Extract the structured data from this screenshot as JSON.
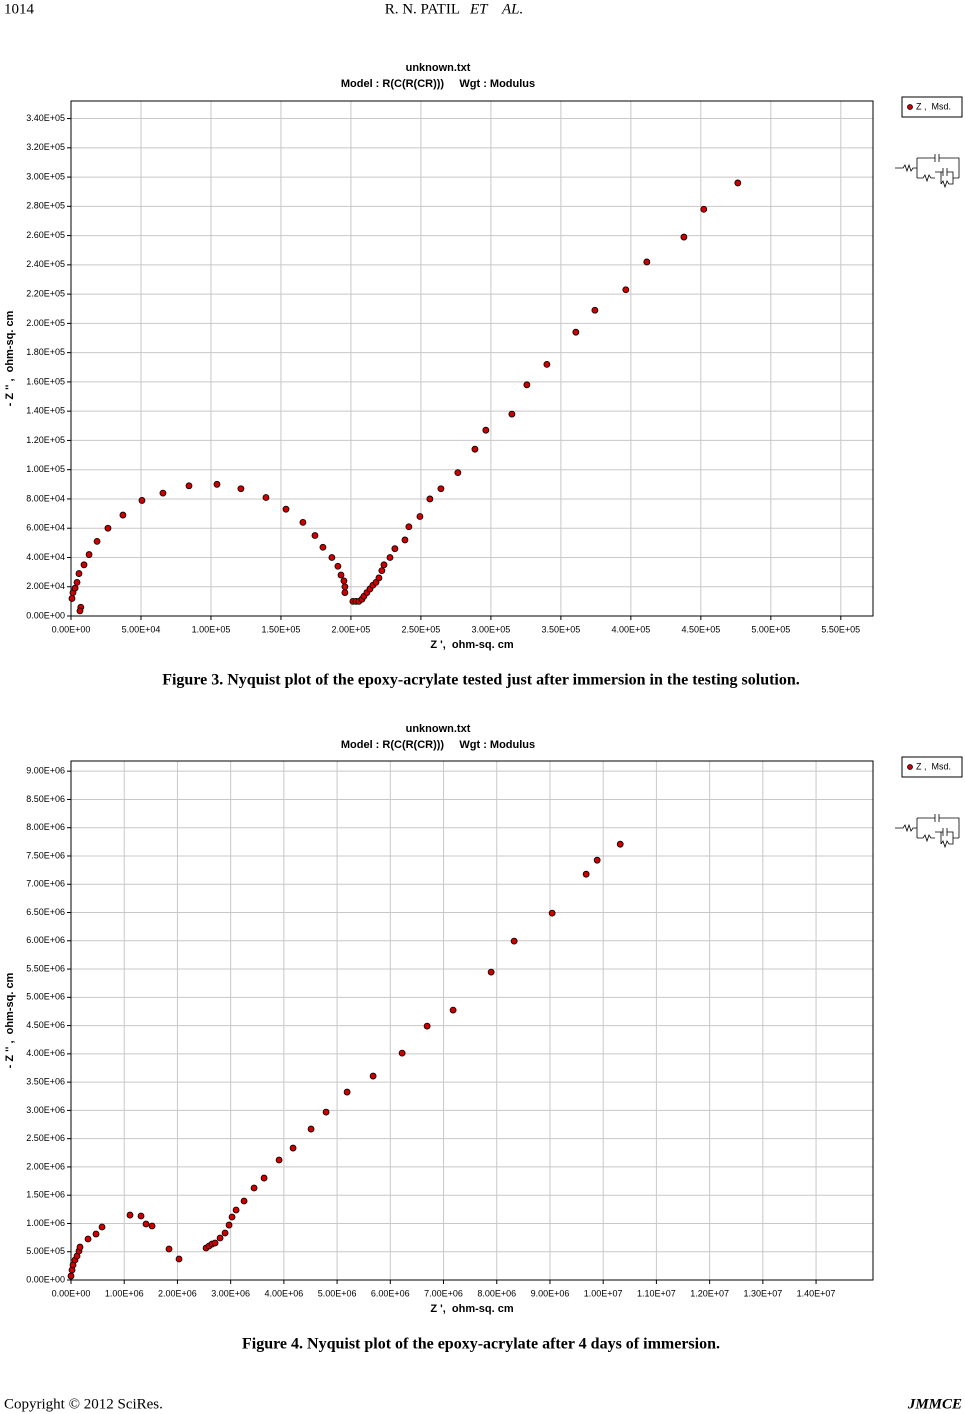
{
  "header": {
    "page": "1014",
    "running_head": "R. N. PATIL",
    "running_head_italic": "ET    AL."
  },
  "chart_data": [
    {
      "type": "scatter",
      "title": "unknown.txt",
      "subtitle": "Model : R(C(R(CR)))     Wgt : Modulus",
      "xlabel": "Z ',  ohm-sq. cm",
      "ylabel": "- Z '' ,  ohm-sq. cm",
      "grid": true,
      "legend": "top-right",
      "xlim": [
        0,
        573000
      ],
      "ylim": [
        0,
        352000
      ],
      "xticks": [
        {
          "value": 0,
          "label": "0.00E+00"
        },
        {
          "value": 50000,
          "label": "5.00E+04"
        },
        {
          "value": 100000,
          "label": "1.00E+05"
        },
        {
          "value": 150000,
          "label": "1.50E+05"
        },
        {
          "value": 200000,
          "label": "2.00E+05"
        },
        {
          "value": 250000,
          "label": "2.50E+05"
        },
        {
          "value": 300000,
          "label": "3.00E+05"
        },
        {
          "value": 350000,
          "label": "3.50E+05"
        },
        {
          "value": 400000,
          "label": "4.00E+05"
        },
        {
          "value": 450000,
          "label": "4.50E+05"
        },
        {
          "value": 500000,
          "label": "5.00E+05"
        },
        {
          "value": 550000,
          "label": "5.50E+05"
        }
      ],
      "yticks": [
        {
          "value": 0,
          "label": "0.00E+00"
        },
        {
          "value": 20000,
          "label": "2.00E+04"
        },
        {
          "value": 40000,
          "label": "4.00E+04"
        },
        {
          "value": 60000,
          "label": "6.00E+04"
        },
        {
          "value": 80000,
          "label": "8.00E+04"
        },
        {
          "value": 100000,
          "label": "1.00E+05"
        },
        {
          "value": 120000,
          "label": "1.20E+05"
        },
        {
          "value": 140000,
          "label": "1.40E+05"
        },
        {
          "value": 160000,
          "label": "1.60E+05"
        },
        {
          "value": 180000,
          "label": "1.80E+05"
        },
        {
          "value": 200000,
          "label": "2.00E+05"
        },
        {
          "value": 220000,
          "label": "2.20E+05"
        },
        {
          "value": 240000,
          "label": "2.40E+05"
        },
        {
          "value": 260000,
          "label": "2.60E+05"
        },
        {
          "value": 280000,
          "label": "2.80E+05"
        },
        {
          "value": 300000,
          "label": "3.00E+05"
        },
        {
          "value": 320000,
          "label": "3.20E+05"
        },
        {
          "value": 340000,
          "label": "3.40E+05"
        }
      ],
      "series": [
        {
          "name": "Z ,  Msd.",
          "color": "#cc0000",
          "x": [
            7000,
            6400,
            700,
            1400,
            2900,
            4300,
            5700,
            9300,
            12900,
            18600,
            26400,
            37100,
            50700,
            65700,
            84300,
            104300,
            121400,
            139300,
            153600,
            165700,
            174300,
            180000,
            186400,
            190700,
            192900,
            195000,
            195700,
            195700,
            201400,
            203600,
            205700,
            207900,
            209300,
            211400,
            213600,
            215700,
            217900,
            220000,
            222100,
            223600,
            227900,
            231400,
            238600,
            241400,
            249300,
            256400,
            264300,
            276400,
            288600,
            296400,
            315000,
            325700,
            340000,
            360700,
            374300,
            396400,
            411400,
            437900,
            452100,
            476400
          ],
          "y": [
            6000,
            3500,
            12000,
            16000,
            19000,
            23000,
            29000,
            35000,
            42000,
            51000,
            60000,
            69000,
            79000,
            84000,
            89000,
            90000,
            87000,
            81000,
            73000,
            64000,
            55000,
            47000,
            40000,
            34000,
            28000,
            24000,
            20000,
            16000,
            10000,
            10000,
            10000,
            11500,
            13500,
            16000,
            18500,
            21000,
            23000,
            26000,
            31000,
            35000,
            40000,
            46000,
            52000,
            61000,
            68000,
            80000,
            87000,
            98000,
            114000,
            127000,
            138000,
            158000,
            172000,
            194000,
            209000,
            223000,
            242000,
            259000,
            278000,
            296000
          ]
        }
      ]
    },
    {
      "type": "scatter",
      "title": "unknown.txt",
      "subtitle": "Model : R(C(R(CR)))     Wgt : Modulus",
      "xlabel": "Z ',  ohm-sq. cm",
      "ylabel": "- Z '' ,  ohm-sq. cm",
      "grid": true,
      "legend": "top-right",
      "xlim": [
        0,
        15070000
      ],
      "ylim": [
        0,
        9180000
      ],
      "xticks": [
        {
          "value": 0,
          "label": "0.00E+00"
        },
        {
          "value": 1000000,
          "label": "1.00E+06"
        },
        {
          "value": 2000000,
          "label": "2.00E+06"
        },
        {
          "value": 3000000,
          "label": "3.00E+06"
        },
        {
          "value": 4000000,
          "label": "4.00E+06"
        },
        {
          "value": 5000000,
          "label": "5.00E+06"
        },
        {
          "value": 6000000,
          "label": "6.00E+06"
        },
        {
          "value": 7000000,
          "label": "7.00E+06"
        },
        {
          "value": 8000000,
          "label": "8.00E+06"
        },
        {
          "value": 9000000,
          "label": "9.00E+06"
        },
        {
          "value": 10000000,
          "label": "1.00E+07"
        },
        {
          "value": 11000000,
          "label": "1.10E+07"
        },
        {
          "value": 12000000,
          "label": "1.20E+07"
        },
        {
          "value": 13000000,
          "label": "1.30E+07"
        },
        {
          "value": 14000000,
          "label": "1.40E+07"
        }
      ],
      "yticks": [
        {
          "value": 0,
          "label": "0.00E+00"
        },
        {
          "value": 500000,
          "label": "5.00E+05"
        },
        {
          "value": 1000000,
          "label": "1.00E+06"
        },
        {
          "value": 1500000,
          "label": "1.50E+06"
        },
        {
          "value": 2000000,
          "label": "2.00E+06"
        },
        {
          "value": 2500000,
          "label": "2.50E+06"
        },
        {
          "value": 3000000,
          "label": "3.00E+06"
        },
        {
          "value": 3500000,
          "label": "3.50E+06"
        },
        {
          "value": 4000000,
          "label": "4.00E+06"
        },
        {
          "value": 4500000,
          "label": "4.50E+06"
        },
        {
          "value": 5000000,
          "label": "5.00E+06"
        },
        {
          "value": 5500000,
          "label": "5.50E+06"
        },
        {
          "value": 6000000,
          "label": "6.00E+06"
        },
        {
          "value": 6500000,
          "label": "6.50E+06"
        },
        {
          "value": 7000000,
          "label": "7.00E+06"
        },
        {
          "value": 7500000,
          "label": "7.50E+06"
        },
        {
          "value": 8000000,
          "label": "8.00E+06"
        },
        {
          "value": 8500000,
          "label": "8.50E+06"
        },
        {
          "value": 9000000,
          "label": "9.00E+06"
        }
      ],
      "series": [
        {
          "name": "Z ,  Msd.",
          "color": "#cc0000",
          "x": [
            0,
            19000,
            38000,
            75000,
            113000,
            150000,
            169000,
            320000,
            470000,
            583000,
            1109000,
            1316000,
            1410000,
            1523000,
            1842000,
            2030000,
            2538000,
            2594000,
            2650000,
            2707000,
            2801000,
            2895000,
            2970000,
            3026000,
            3102000,
            3252000,
            3440000,
            3628000,
            3910000,
            4173000,
            4511000,
            4793000,
            5188000,
            5677000,
            6222000,
            6692000,
            7180000,
            7895000,
            8327000,
            9041000,
            9680000,
            9887000,
            10320000
          ],
          "y": [
            70000,
            177000,
            265000,
            354000,
            424000,
            513000,
            583000,
            725000,
            813000,
            937000,
            1149000,
            1132000,
            990000,
            955000,
            548000,
            371000,
            566000,
            601000,
            636000,
            654000,
            743000,
            831000,
            972000,
            1114000,
            1238000,
            1397000,
            1627000,
            1803000,
            2122000,
            2334000,
            2670000,
            2970000,
            3324000,
            3607000,
            4013000,
            4491000,
            4774000,
            5446000,
            5994000,
            6489000,
            7178000,
            7426000,
            7709000
          ]
        }
      ]
    }
  ],
  "captions": [
    "Figure 3. Nyquist plot of the epoxy-acrylate tested just after immersion in the testing solution.",
    "Figure 4. Nyquist plot of the epoxy-acrylate after 4 days of immersion."
  ],
  "footer": {
    "copyright": "Copyright © 2012 SciRes.",
    "journal": "JMMCE"
  }
}
